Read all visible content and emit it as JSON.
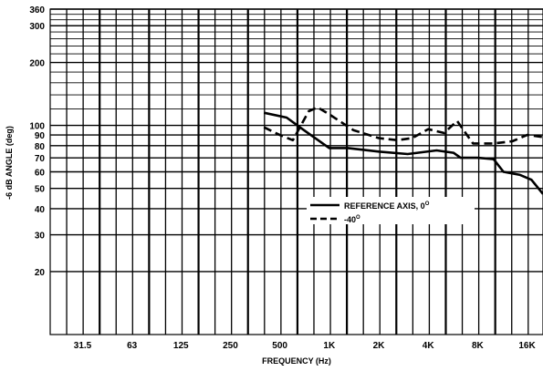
{
  "chart_data": {
    "type": "line",
    "xlabel": "FREQUENCY (Hz)",
    "ylabel": "-6 dB ANGLE (deg)",
    "x_scale": "log",
    "y_scale": "log",
    "xlim": [
      20,
      20000
    ],
    "ylim": [
      10,
      360
    ],
    "grid": true,
    "x_ticks": [
      {
        "value": 31.5,
        "label": "31.5"
      },
      {
        "value": 63,
        "label": "63"
      },
      {
        "value": 125,
        "label": "125"
      },
      {
        "value": 250,
        "label": "250"
      },
      {
        "value": 500,
        "label": "500"
      },
      {
        "value": 1000,
        "label": "1K"
      },
      {
        "value": 2000,
        "label": "2K"
      },
      {
        "value": 4000,
        "label": "4K"
      },
      {
        "value": 8000,
        "label": "8K"
      },
      {
        "value": 16000,
        "label": "16K"
      }
    ],
    "y_ticks": [
      {
        "value": 360,
        "label": "360"
      },
      {
        "value": 300,
        "label": "300"
      },
      {
        "value": 200,
        "label": "200"
      },
      {
        "value": 100,
        "label": "100"
      },
      {
        "value": 90,
        "label": "90"
      },
      {
        "value": 80,
        "label": "80"
      },
      {
        "value": 70,
        "label": "70"
      },
      {
        "value": 60,
        "label": "60"
      },
      {
        "value": 50,
        "label": "50"
      },
      {
        "value": 40,
        "label": "40"
      },
      {
        "value": 30,
        "label": "30"
      },
      {
        "value": 20,
        "label": "20"
      }
    ],
    "legend": {
      "position": "center-right"
    },
    "series": [
      {
        "name": "REFERENCE AXIS, 0°",
        "legend_label": "REFERENCE AXIS, 0",
        "legend_sup": "O",
        "style": "solid",
        "color": "#000000",
        "x": [
          400,
          550,
          700,
          1000,
          1300,
          2000,
          3000,
          4500,
          5700,
          6300,
          7000,
          8000,
          10000,
          11500,
          14500,
          17000,
          20000
        ],
        "y": [
          115,
          109,
          95,
          78,
          78,
          75,
          73,
          76,
          74,
          70,
          70,
          70,
          69,
          60,
          58,
          55,
          47
        ]
      },
      {
        "name": "-40°",
        "legend_label": "-40",
        "legend_sup": "O",
        "style": "dashed",
        "color": "#000000",
        "x": [
          400,
          500,
          600,
          750,
          850,
          1000,
          1400,
          2000,
          2600,
          3200,
          4000,
          5000,
          6000,
          7500,
          10000,
          13000,
          16000,
          20000
        ],
        "y": [
          98,
          90,
          85,
          117,
          122,
          113,
          95,
          87,
          85,
          87,
          96,
          92,
          105,
          82,
          82,
          84,
          90,
          88
        ]
      }
    ]
  }
}
